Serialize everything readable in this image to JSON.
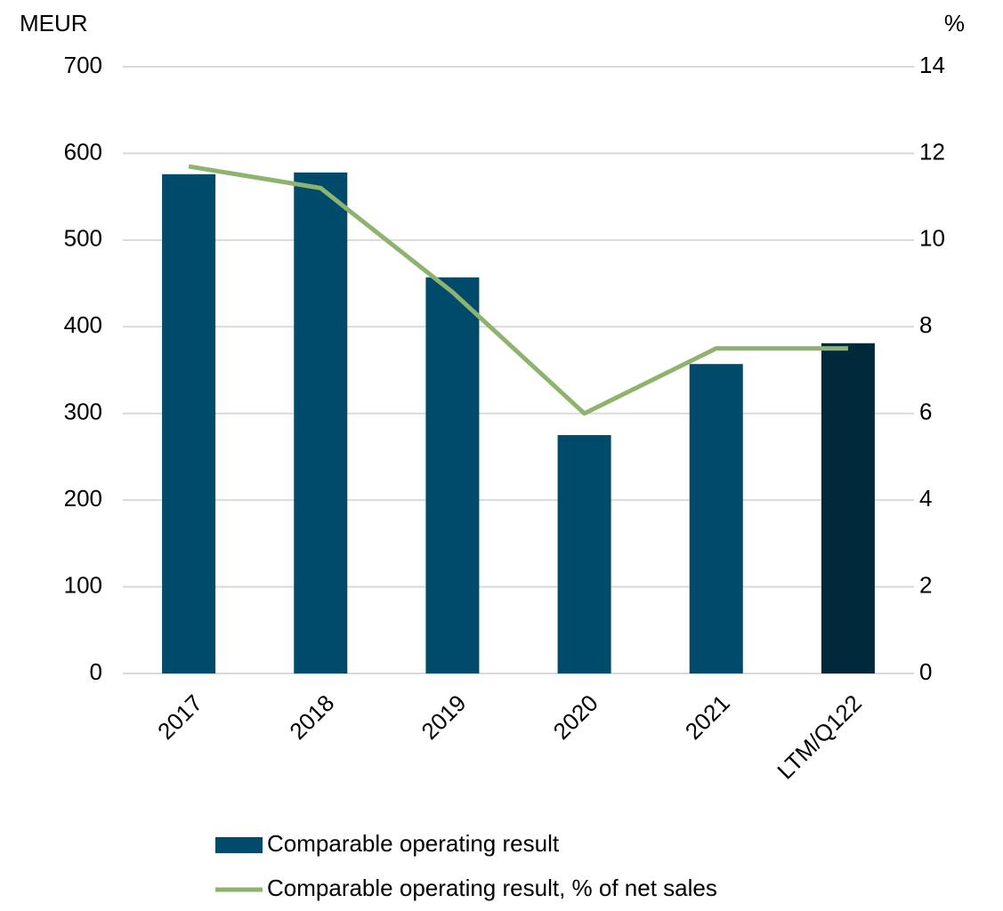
{
  "chart_data": {
    "type": "bar_line",
    "ylabel": "MEUR",
    "y2label": "%",
    "categories": [
      "2017",
      "2018",
      "2019",
      "2020",
      "2021",
      "LTM/Q122"
    ],
    "series": [
      {
        "name": "Comparable operating result",
        "type": "bar",
        "color": "#004a6b",
        "colors": [
          "#004a6b",
          "#004a6b",
          "#004a6b",
          "#004a6b",
          "#004a6b",
          "#00293b"
        ],
        "values": [
          576,
          578,
          457,
          275,
          357,
          381
        ]
      },
      {
        "name": "Comparable operating result, % of net sales",
        "type": "line",
        "axis": "y2",
        "color": "#8db36f",
        "values": [
          11.7,
          11.2,
          8.8,
          6.0,
          7.5,
          7.5
        ]
      }
    ],
    "ylim": [
      0,
      700
    ],
    "yticks": [
      0,
      100,
      200,
      300,
      400,
      500,
      600,
      700
    ],
    "y2lim": [
      0,
      14
    ],
    "y2ticks": [
      0,
      2,
      4,
      6,
      8,
      10,
      12,
      14
    ],
    "grid": true
  }
}
